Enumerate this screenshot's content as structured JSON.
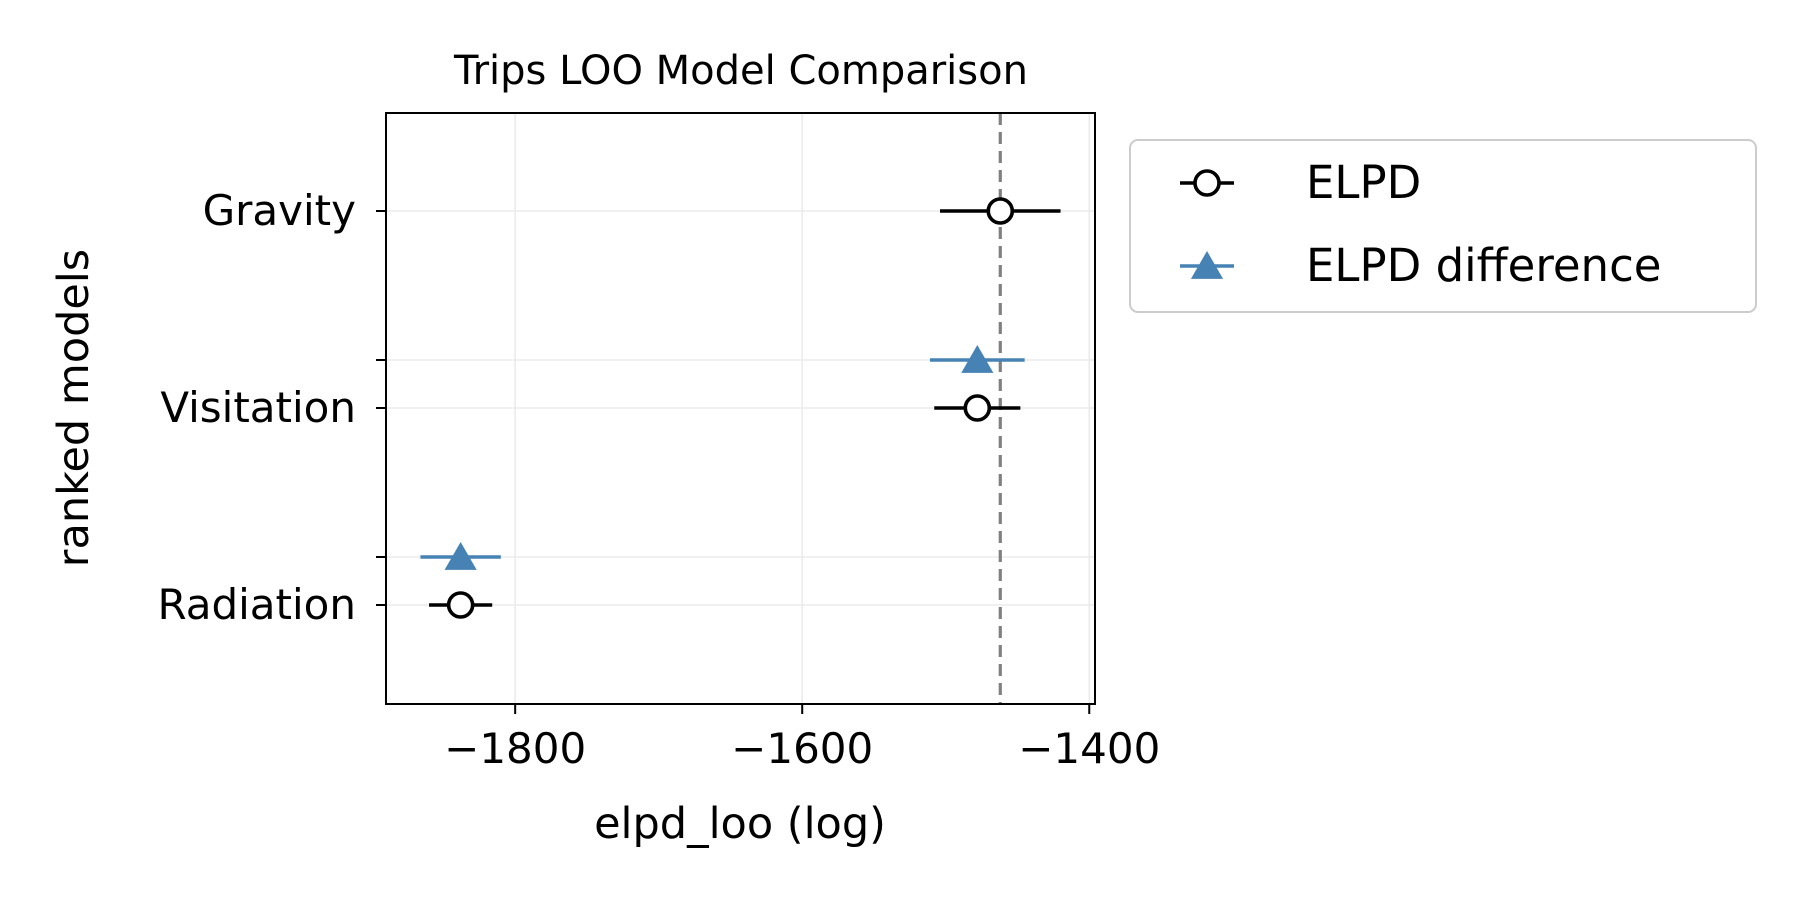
{
  "chart_data": {
    "type": "scatter",
    "title": "Trips LOO Model Comparison",
    "xlabel": "elpd_loo (log)",
    "ylabel": "ranked models",
    "xlim": [
      -1890,
      -1396
    ],
    "xticks": [
      -1800,
      -1600,
      -1400
    ],
    "xtick_labels": [
      "−1800",
      "−1600",
      "−1400"
    ],
    "models": [
      "Gravity",
      "Visitation",
      "Radiation"
    ],
    "reference_line": {
      "x": -1462,
      "style": "dashed",
      "color": "#808080"
    },
    "grid": true,
    "legend_position": "outside-right-top",
    "series": [
      {
        "name": "ELPD",
        "marker": "open-circle",
        "color": "#000000",
        "points": [
          {
            "model": "Gravity",
            "x": -1462,
            "err": 42
          },
          {
            "model": "Visitation",
            "x": -1478,
            "err": 30
          },
          {
            "model": "Radiation",
            "x": -1838,
            "err": 22
          }
        ]
      },
      {
        "name": "ELPD difference",
        "marker": "triangle",
        "color": "#4682b4",
        "points": [
          {
            "model": "Visitation",
            "x": -1478,
            "err": 33
          },
          {
            "model": "Radiation",
            "x": -1838,
            "err": 28
          }
        ]
      }
    ]
  }
}
